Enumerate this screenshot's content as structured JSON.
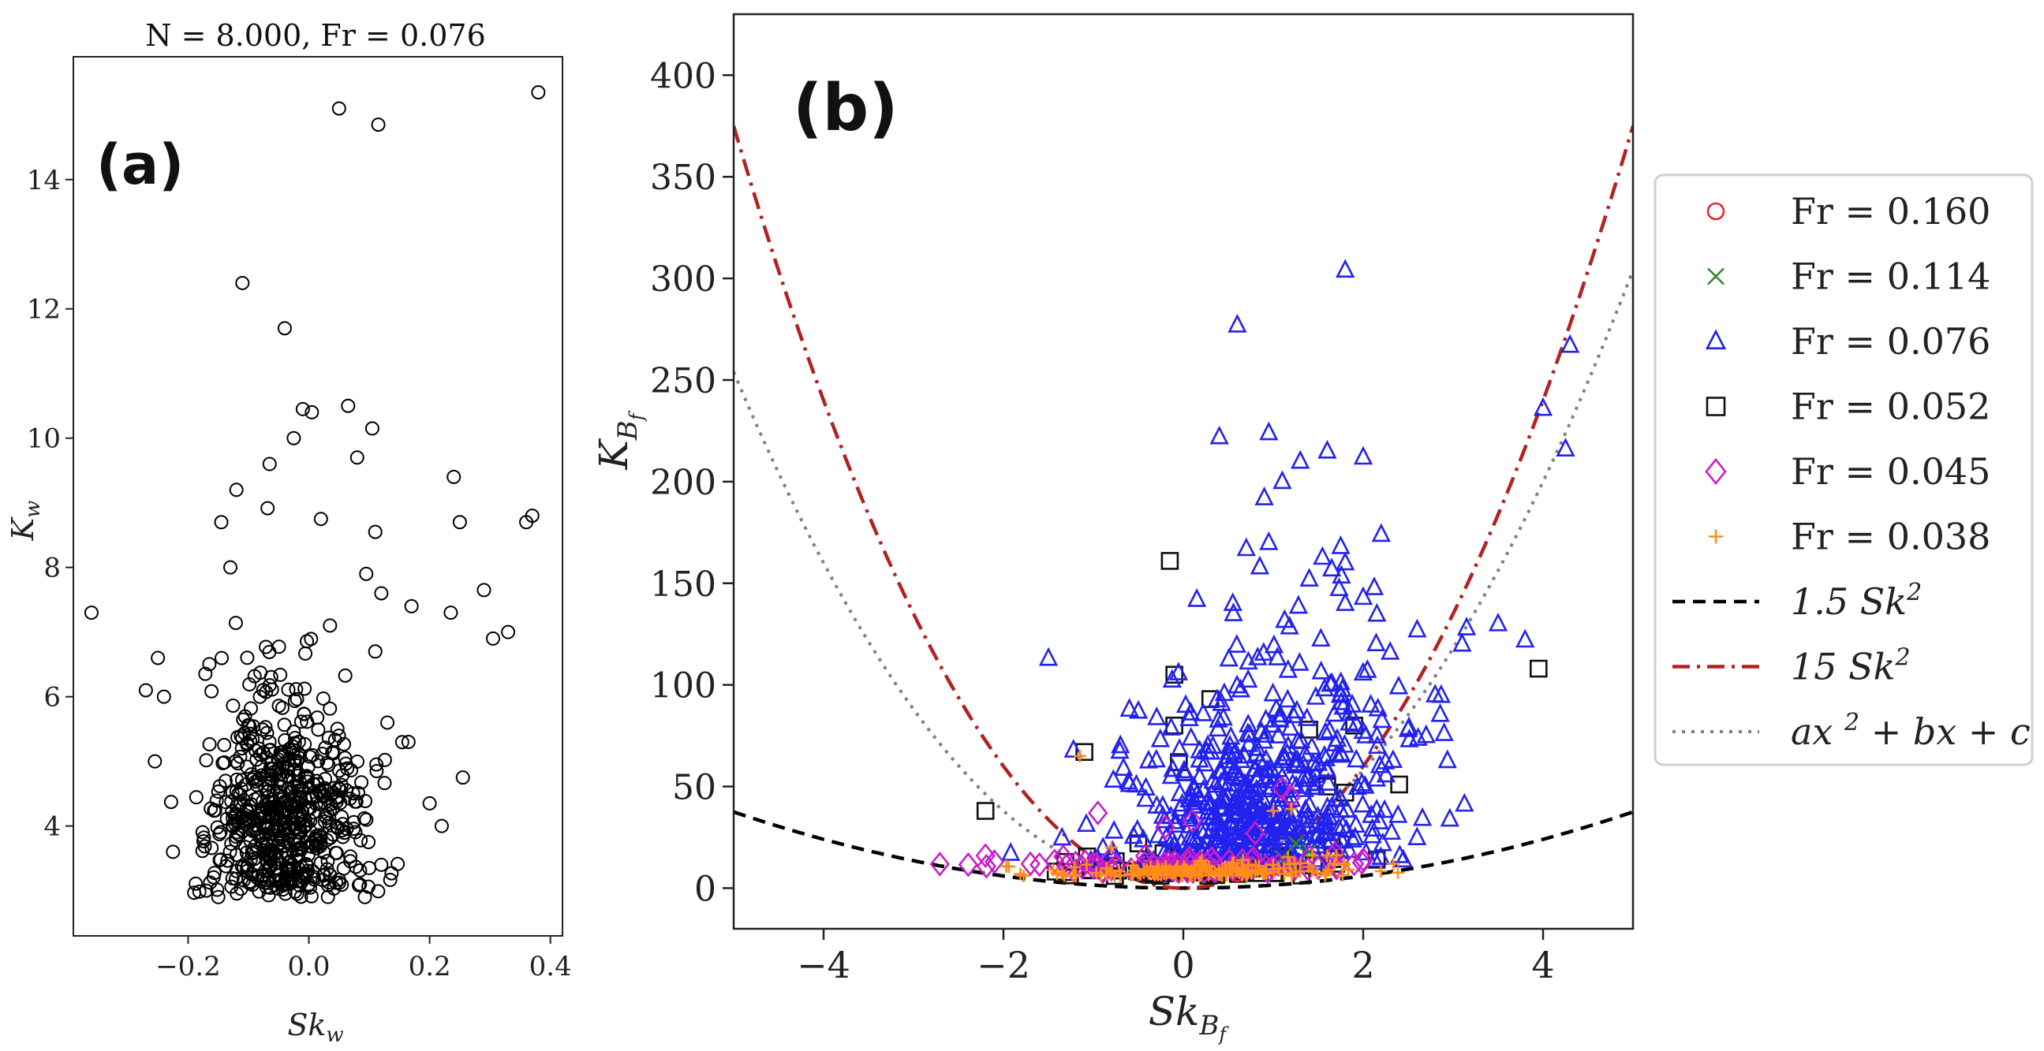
{
  "chart_data": [
    {
      "panel": "(a)",
      "type": "scatter",
      "title": "N = 8.000, Fr = 0.076",
      "xlabel": "Sk",
      "xlabel_sub": "w",
      "ylabel": "K",
      "ylabel_sub": "w",
      "xlim": [
        -0.39,
        0.42
      ],
      "ylim": [
        2.3,
        15.9
      ],
      "xticks": [
        -0.2,
        0.0,
        0.2,
        0.4
      ],
      "xtick_labels": [
        "−0.2",
        "0.0",
        "0.2",
        "0.4"
      ],
      "yticks": [
        4,
        6,
        8,
        10,
        12,
        14
      ],
      "ytick_labels": [
        "4",
        "6",
        "8",
        "10",
        "12",
        "14"
      ],
      "marker": "circle-open",
      "color": "#000000",
      "outliers": [
        {
          "x": 0.38,
          "y": 15.35
        },
        {
          "x": 0.05,
          "y": 15.1
        },
        {
          "x": 0.115,
          "y": 14.85
        },
        {
          "x": -0.11,
          "y": 12.4
        },
        {
          "x": -0.04,
          "y": 11.7
        },
        {
          "x": 0.065,
          "y": 10.5
        },
        {
          "x": -0.01,
          "y": 10.45
        },
        {
          "x": 0.005,
          "y": 10.4
        },
        {
          "x": 0.105,
          "y": 10.15
        },
        {
          "x": -0.025,
          "y": 10.0
        },
        {
          "x": -0.065,
          "y": 9.6
        },
        {
          "x": 0.24,
          "y": 9.4
        },
        {
          "x": 0.08,
          "y": 9.7
        },
        {
          "x": -0.12,
          "y": 9.2
        },
        {
          "x": 0.25,
          "y": 8.7
        },
        {
          "x": 0.37,
          "y": 8.8
        },
        {
          "x": 0.36,
          "y": 8.7
        },
        {
          "x": 0.11,
          "y": 8.55
        },
        {
          "x": 0.02,
          "y": 8.75
        },
        {
          "x": -0.145,
          "y": 8.7
        },
        {
          "x": -0.13,
          "y": 8.0
        },
        {
          "x": 0.095,
          "y": 7.9
        },
        {
          "x": 0.29,
          "y": 7.65
        },
        {
          "x": 0.12,
          "y": 7.6
        },
        {
          "x": -0.36,
          "y": 7.3
        },
        {
          "x": 0.17,
          "y": 7.4
        },
        {
          "x": 0.235,
          "y": 7.3
        },
        {
          "x": 0.33,
          "y": 7.0
        },
        {
          "x": 0.305,
          "y": 6.9
        },
        {
          "x": -0.25,
          "y": 6.6
        },
        {
          "x": 0.11,
          "y": 6.7
        },
        {
          "x": -0.27,
          "y": 6.1
        },
        {
          "x": -0.24,
          "y": 6.0
        },
        {
          "x": 0.13,
          "y": 5.6
        },
        {
          "x": -0.255,
          "y": 5.0
        },
        {
          "x": 0.165,
          "y": 5.3
        },
        {
          "x": 0.22,
          "y": 4.0
        },
        {
          "x": 0.255,
          "y": 4.75
        },
        {
          "x": 0.2,
          "y": 4.35
        },
        {
          "x": -0.225,
          "y": 3.6
        },
        {
          "x": -0.17,
          "y": 3.0
        },
        {
          "x": -0.15,
          "y": 2.9
        },
        {
          "x": 0.12,
          "y": 3.4
        },
        {
          "x": 0.1,
          "y": 3.35
        }
      ],
      "cluster": {
        "count": 620,
        "x_mean": -0.04,
        "x_std": 0.065,
        "y_min": 2.9,
        "y_mode": 4.2,
        "y_spread": 0.9
      }
    },
    {
      "panel": "(b)",
      "type": "scatter",
      "xlabel": "Sk",
      "xlabel_sub": "B",
      "xlabel_subsub": "f",
      "ylabel": "K",
      "ylabel_sub": "B",
      "ylabel_subsub": "f",
      "xlim": [
        -5,
        5
      ],
      "ylim": [
        -20,
        430
      ],
      "xticks": [
        -4,
        -2,
        0,
        2,
        4
      ],
      "xtick_labels": [
        "−4",
        "−2",
        "0",
        "2",
        "4"
      ],
      "yticks": [
        0,
        50,
        100,
        150,
        200,
        250,
        300,
        350,
        400
      ],
      "ytick_labels": [
        "0",
        "50",
        "100",
        "150",
        "200",
        "250",
        "300",
        "350",
        "400"
      ],
      "legend_position": "outside-right",
      "series": [
        {
          "name": "Fr = 0.160",
          "marker": "circle-open",
          "color": "#e8262a",
          "points": [
            {
              "x": -0.3,
              "y": 8
            },
            {
              "x": 0.2,
              "y": 9
            },
            {
              "x": 0.6,
              "y": 7
            },
            {
              "x": 1.0,
              "y": 10
            },
            {
              "x": -0.8,
              "y": 9
            }
          ]
        },
        {
          "name": "Fr = 0.114",
          "marker": "x",
          "color": "#2a8a2a",
          "points": [
            {
              "x": 1.25,
              "y": 22
            },
            {
              "x": 1.4,
              "y": 18
            },
            {
              "x": 0.7,
              "y": 12
            },
            {
              "x": 0.1,
              "y": 11
            },
            {
              "x": -0.4,
              "y": 10
            },
            {
              "x": 1.1,
              "y": 15
            }
          ]
        },
        {
          "name": "Fr = 0.076",
          "marker": "triangle-open",
          "color": "#2222ee",
          "points": [
            {
              "x": 1.8,
              "y": 304
            },
            {
              "x": 0.6,
              "y": 277
            },
            {
              "x": 4.3,
              "y": 267
            },
            {
              "x": 4.0,
              "y": 236
            },
            {
              "x": 0.4,
              "y": 222
            },
            {
              "x": 0.95,
              "y": 224
            },
            {
              "x": 4.25,
              "y": 216
            },
            {
              "x": 1.3,
              "y": 210
            },
            {
              "x": 1.6,
              "y": 215
            },
            {
              "x": 2.0,
              "y": 212
            },
            {
              "x": 1.1,
              "y": 200
            },
            {
              "x": 0.9,
              "y": 192
            },
            {
              "x": 2.2,
              "y": 174
            },
            {
              "x": 0.95,
              "y": 170
            },
            {
              "x": 0.7,
              "y": 167
            },
            {
              "x": 1.75,
              "y": 168
            },
            {
              "x": 1.65,
              "y": 157
            },
            {
              "x": 1.8,
              "y": 160
            },
            {
              "x": 0.85,
              "y": 158
            },
            {
              "x": 1.4,
              "y": 152
            },
            {
              "x": 2.0,
              "y": 143
            },
            {
              "x": 0.15,
              "y": 142
            },
            {
              "x": 0.55,
              "y": 140
            },
            {
              "x": 1.8,
              "y": 140
            },
            {
              "x": 3.15,
              "y": 128
            },
            {
              "x": 3.5,
              "y": 130
            },
            {
              "x": 3.8,
              "y": 122
            },
            {
              "x": 2.6,
              "y": 127
            },
            {
              "x": 3.1,
              "y": 120
            },
            {
              "x": 2.3,
              "y": 116
            },
            {
              "x": -1.5,
              "y": 113
            },
            {
              "x": 2.8,
              "y": 95
            },
            {
              "x": -0.6,
              "y": 88
            },
            {
              "x": -0.5,
              "y": 87
            },
            {
              "x": -0.7,
              "y": 70
            },
            {
              "x": -0.3,
              "y": 63
            },
            {
              "x": 2.5,
              "y": 78
            },
            {
              "x": 2.7,
              "y": 75
            },
            {
              "x": 2.9,
              "y": 76
            }
          ],
          "cluster": {
            "count": 520,
            "x_mean": 0.9,
            "x_std": 0.75,
            "y_floor": 12,
            "y_scale": 32
          }
        },
        {
          "name": "Fr = 0.052",
          "marker": "square-open",
          "color": "#111111",
          "points": [
            {
              "x": -0.15,
              "y": 161
            },
            {
              "x": 3.95,
              "y": 108
            },
            {
              "x": -0.1,
              "y": 105
            },
            {
              "x": 0.3,
              "y": 93
            },
            {
              "x": -0.1,
              "y": 80
            },
            {
              "x": 1.9,
              "y": 80
            },
            {
              "x": 1.4,
              "y": 78
            },
            {
              "x": -1.1,
              "y": 67
            },
            {
              "x": -0.05,
              "y": 62
            },
            {
              "x": 1.6,
              "y": 50
            },
            {
              "x": 2.4,
              "y": 51
            },
            {
              "x": 1.8,
              "y": 47
            },
            {
              "x": -2.2,
              "y": 38
            },
            {
              "x": 1.65,
              "y": 23
            },
            {
              "x": 2.15,
              "y": 14
            },
            {
              "x": 0.9,
              "y": 18
            },
            {
              "x": -0.5,
              "y": 22
            },
            {
              "x": 1.7,
              "y": 12
            }
          ],
          "cluster": {
            "count": 60,
            "x_mean": 0.1,
            "x_std": 0.7,
            "y_floor": 6,
            "y_scale": 5
          }
        },
        {
          "name": "Fr = 0.045",
          "marker": "diamond-open",
          "color": "#c81ec8",
          "points": [
            {
              "x": -0.95,
              "y": 37
            },
            {
              "x": 1.1,
              "y": 49
            },
            {
              "x": 1.2,
              "y": 45
            },
            {
              "x": 0.1,
              "y": 33
            },
            {
              "x": -0.2,
              "y": 30
            },
            {
              "x": 0.8,
              "y": 27
            },
            {
              "x": -2.2,
              "y": 16
            },
            {
              "x": -2.1,
              "y": 13
            },
            {
              "x": -1.7,
              "y": 12
            },
            {
              "x": 1.5,
              "y": 10
            },
            {
              "x": 1.9,
              "y": 12
            },
            {
              "x": 2.0,
              "y": 14
            },
            {
              "x": -1.3,
              "y": 11
            },
            {
              "x": -1.0,
              "y": 12
            }
          ],
          "cluster": {
            "count": 70,
            "x_mean": 0.0,
            "x_std": 0.9,
            "y_floor": 8,
            "y_scale": 3
          }
        },
        {
          "name": "Fr = 0.038",
          "marker": "plus",
          "color": "#ff8c1a",
          "points": [
            {
              "x": -1.15,
              "y": 65
            },
            {
              "x": 1.0,
              "y": 38
            },
            {
              "x": 1.2,
              "y": 39
            },
            {
              "x": -0.8,
              "y": 20
            },
            {
              "x": 1.6,
              "y": 16
            }
          ],
          "cluster": {
            "count": 170,
            "x_mean": 0.1,
            "x_std": 0.8,
            "y_floor": 6,
            "y_scale": 3
          }
        }
      ],
      "curves": [
        {
          "name": "1.5 Sk²",
          "label_coef": "1.5",
          "label_var": "Sk",
          "label_pow": "2",
          "style": "dashed",
          "color": "#000000",
          "a": 1.5,
          "b": 0,
          "c": 0
        },
        {
          "name": "15 Sk²",
          "label_coef": "15",
          "label_var": "Sk",
          "label_pow": "2",
          "style": "dashdot",
          "color": "#b22222",
          "a": 15,
          "b": 0,
          "c": 0
        },
        {
          "name": "ax² + bx + c",
          "label_coef": "ax",
          "label_var": "+ bx + c",
          "label_pow": "2",
          "style": "dotted",
          "color": "#808080",
          "a": 11,
          "b": 5,
          "c": 4
        }
      ]
    }
  ],
  "labels": {
    "panel_a": "(a)",
    "panel_b": "(b)"
  }
}
